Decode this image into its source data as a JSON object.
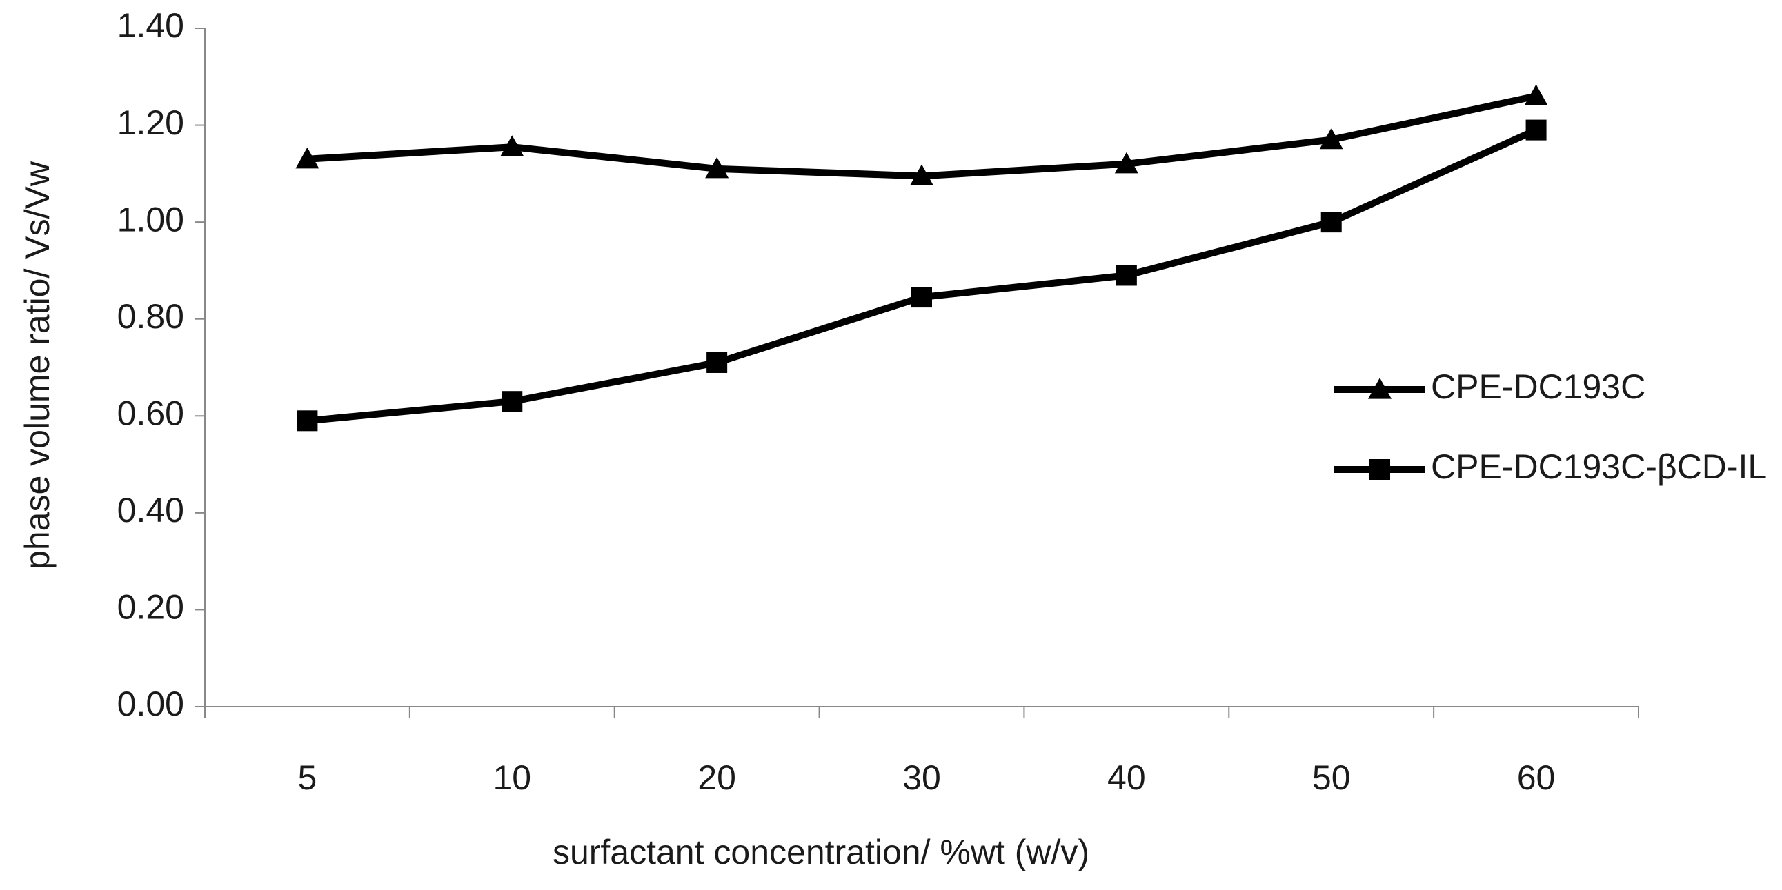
{
  "chart_data": {
    "type": "line",
    "x_label": "surfactant concentration/ %wt (w/v)",
    "y_label": "phase volume ratio/ Vs/Vw",
    "categories": [
      "5",
      "10",
      "20",
      "30",
      "40",
      "50",
      "60"
    ],
    "series": [
      {
        "name": "CPE-DC193C",
        "color": "#000000",
        "marker": "triangle",
        "values": [
          1.13,
          1.155,
          1.11,
          1.095,
          1.12,
          1.17,
          1.26
        ]
      },
      {
        "name": "CPE-DC193C-βCD-IL",
        "color": "#000000",
        "marker": "square",
        "values": [
          0.59,
          0.63,
          0.71,
          0.845,
          0.89,
          1.0,
          1.19
        ]
      }
    ],
    "ylim": [
      0,
      1.4
    ],
    "yticks": [
      {
        "value": 0,
        "label": "0.00"
      },
      {
        "value": 0.2,
        "label": "0.20"
      },
      {
        "value": 0.4,
        "label": "0.40"
      },
      {
        "value": 0.6,
        "label": "0.60"
      },
      {
        "value": 0.8,
        "label": "0.80"
      },
      {
        "value": 1.0,
        "label": "1.00"
      },
      {
        "value": 1.2,
        "label": "1.20"
      },
      {
        "value": 1.4,
        "label": "1.40"
      }
    ],
    "legend": "right"
  }
}
